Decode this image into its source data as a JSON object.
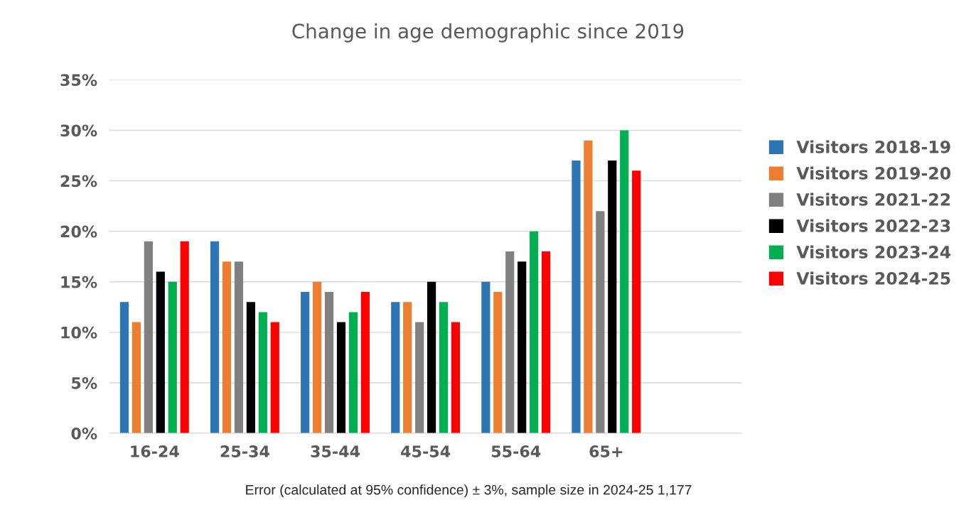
{
  "chart_data": {
    "type": "bar",
    "title": "Change in age demographic since 2019",
    "categories": [
      "16-24",
      "25-34",
      "35-44",
      "45-54",
      "55-64",
      "65+",
      null
    ],
    "series": [
      {
        "name": "Visitors 2018-19",
        "color": "#2e75b6",
        "values": [
          13,
          19,
          14,
          13,
          15,
          27,
          null
        ]
      },
      {
        "name": "Visitors 2019-20",
        "color": "#ed7d31",
        "values": [
          11,
          17,
          15,
          13,
          14,
          29,
          null
        ]
      },
      {
        "name": "Visitors 2021-22",
        "color": "#808080",
        "values": [
          19,
          17,
          14,
          11,
          18,
          22,
          null
        ]
      },
      {
        "name": "Visitors 2022-23",
        "color": "#000000",
        "values": [
          16,
          13,
          11,
          15,
          17,
          27,
          null
        ]
      },
      {
        "name": "Visitors 2023-24",
        "color": "#00b050",
        "values": [
          15,
          12,
          12,
          13,
          20,
          30,
          null
        ]
      },
      {
        "name": "Visitors 2024-25",
        "color": "#ff0000",
        "values": [
          19,
          11,
          14,
          11,
          18,
          26,
          null
        ]
      }
    ],
    "ylim": [
      0,
      35
    ],
    "yticks": [
      {
        "value": 0,
        "label": "0%"
      },
      {
        "value": 5,
        "label": "5%"
      },
      {
        "value": 10,
        "label": "10%"
      },
      {
        "value": 15,
        "label": "15%"
      },
      {
        "value": 20,
        "label": "20%"
      },
      {
        "value": 25,
        "label": "25%"
      },
      {
        "value": 30,
        "label": "30%"
      },
      {
        "value": 35,
        "label": "35%"
      }
    ],
    "grid": "y",
    "legend": "right",
    "annotations": [
      "Error (calculated at 95% confidence) ± 3%, sample size in 2024-25 1,177"
    ]
  }
}
